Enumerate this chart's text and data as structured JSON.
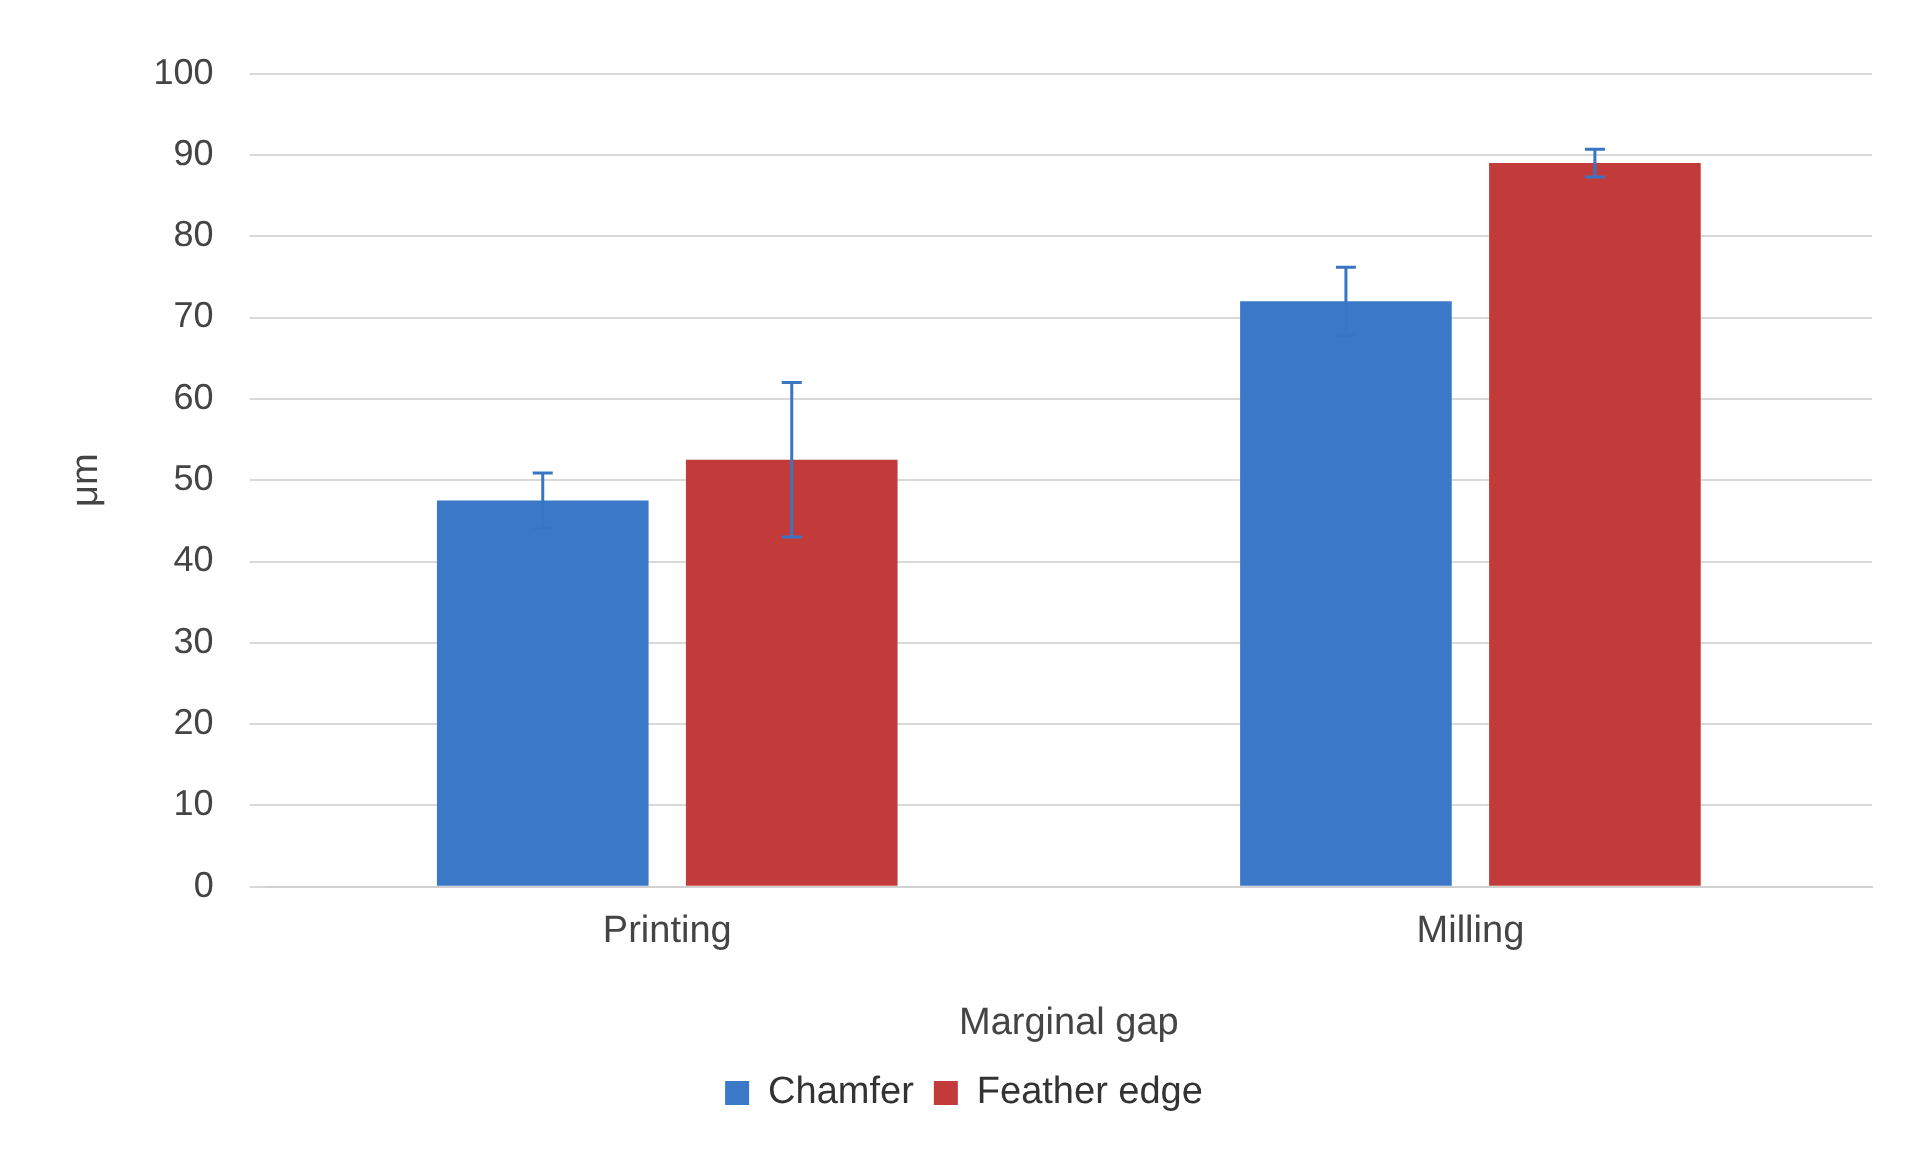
{
  "chart_data": {
    "type": "bar",
    "ylabel": "μm",
    "xlabel": "Marginal gap",
    "categories": [
      "Printing",
      "Milling"
    ],
    "series": [
      {
        "name": "Chamfer",
        "color": "#3b78c8",
        "values": [
          47.5,
          72
        ],
        "errors": [
          3.4,
          4.2
        ]
      },
      {
        "name": "Feather edge",
        "color": "#c23b3a",
        "values": [
          52.5,
          89
        ],
        "errors": [
          9.5,
          1.7
        ]
      }
    ],
    "ylim": [
      0,
      100
    ],
    "yticks": [
      0,
      10,
      20,
      30,
      40,
      50,
      60,
      70,
      80,
      90,
      100
    ],
    "grid": "y",
    "legend": "bottom"
  }
}
